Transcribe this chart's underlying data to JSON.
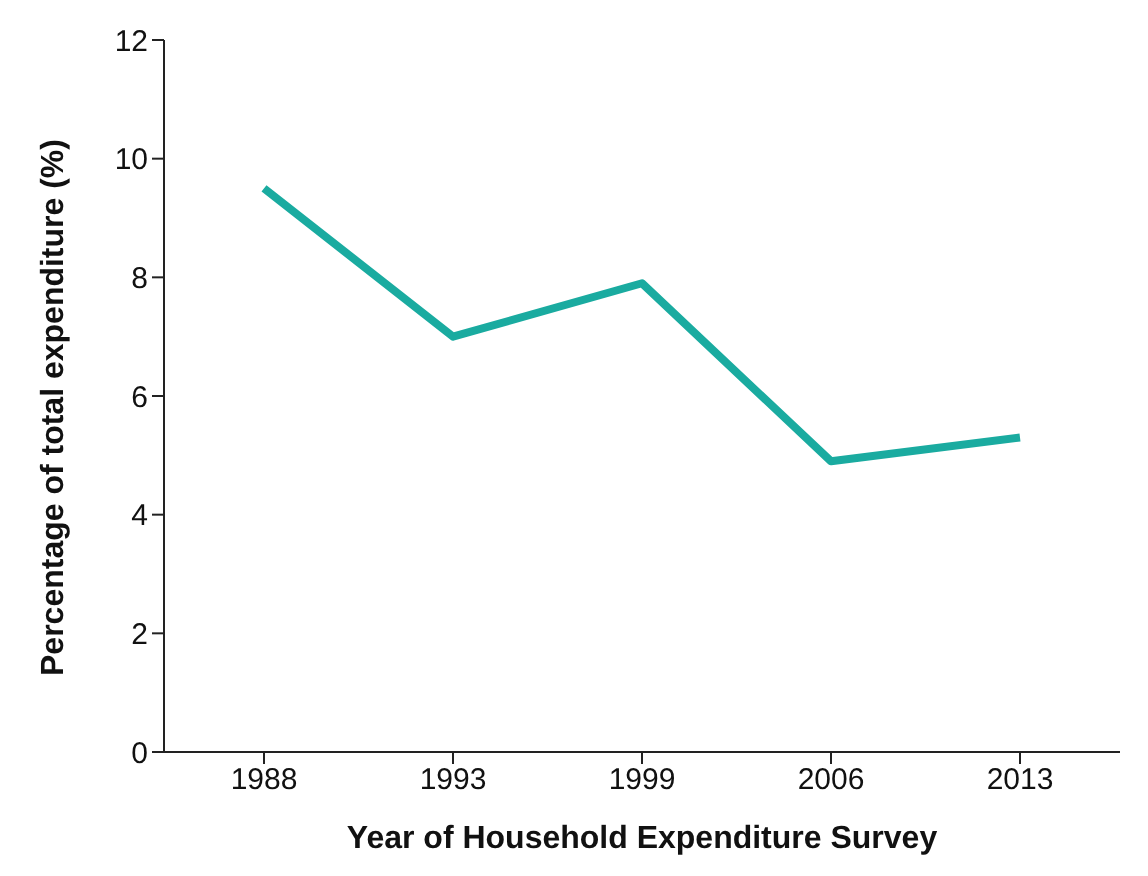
{
  "chart_data": {
    "type": "line",
    "xlabel": "Year of Household Expenditure Survey",
    "ylabel": "Percentage of total expenditure (%)",
    "categories": [
      "1988",
      "1993",
      "1999",
      "2006",
      "2013"
    ],
    "series": [
      {
        "color": "#1aaba0",
        "values": [
          9.5,
          7.0,
          7.9,
          4.9,
          5.3
        ]
      }
    ],
    "ylim": [
      0,
      12
    ],
    "yticks": [
      0,
      2,
      4,
      6,
      8,
      10,
      12
    ],
    "grid": false,
    "legend": false,
    "marker": "none",
    "line_style": "solid"
  }
}
